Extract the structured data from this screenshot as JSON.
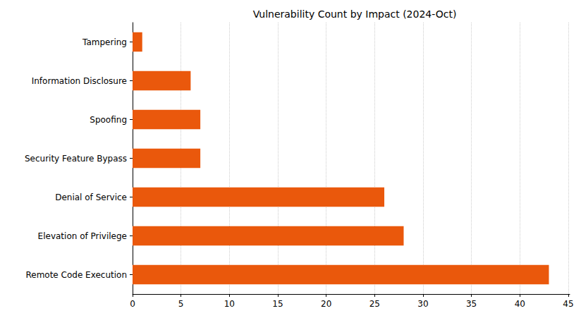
{
  "chart_data": {
    "type": "bar",
    "title": "Vulnerability Count by Impact (2024-Oct)",
    "orientation": "horizontal",
    "categories": [
      "Tampering",
      "Information Disclosure",
      "Spoofing",
      "Security Feature Bypass",
      "Denial of Service",
      "Elevation of Privilege",
      "Remote Code Execution"
    ],
    "values": [
      1,
      6,
      7,
      7,
      26,
      28,
      43
    ],
    "color": "#ea580c",
    "xlim": [
      0,
      45.15
    ],
    "xticks": [
      0,
      5,
      10,
      15,
      20,
      25,
      30,
      35,
      40,
      45
    ],
    "grid": true
  }
}
